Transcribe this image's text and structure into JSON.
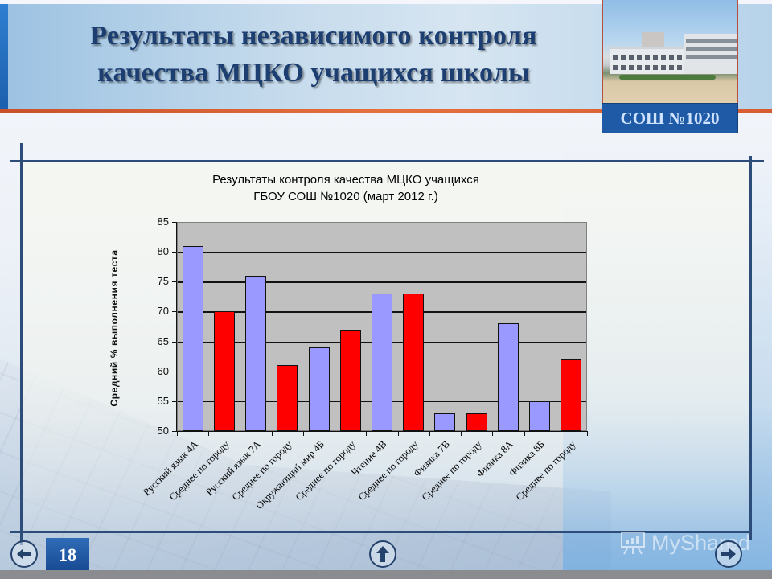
{
  "slide": {
    "title_line1": "Результаты независимого контроля",
    "title_line2": "качества МЦКО учащихся школы",
    "school_label": "СОШ №1020",
    "page_number": "18",
    "watermark": "MyShared",
    "nav": {
      "prev_icon": "arrow-left-icon",
      "up_icon": "arrow-up-icon",
      "next_icon": "arrow-right-icon"
    }
  },
  "colors": {
    "title": "#1c3e70",
    "school_bar": "#9999ff",
    "city_bar": "#ff0000",
    "plot_bg": "#c0c0c0",
    "frame": "#2c4d7a",
    "accent_stripe": "#e6703e",
    "label_bg": "#1f5aa6"
  },
  "chart_data": {
    "type": "bar",
    "title": "Результаты контроля качества МЦКО учащихся",
    "subtitle": "ГБОУ СОШ №1020 (март 2012 г.)",
    "xlabel": "",
    "ylabel": "Средний % выполнения теста",
    "ylim": [
      50,
      85
    ],
    "yticks": [
      50,
      55,
      60,
      65,
      70,
      75,
      80,
      85
    ],
    "grid": true,
    "legend": "none",
    "categories": [
      "Русский язык 4А",
      "Среднее по городу",
      "Русский язык 7А",
      "Среднее по городу",
      "Окружающий мир 4Б",
      "Среднее по городу",
      "Чтение 4В",
      "Среднее по городу",
      "Физика 7В",
      "Среднее по городу",
      "Физика 8А",
      "Физика 8Б",
      "Среднее по городу"
    ],
    "values": [
      81,
      70,
      76,
      61,
      64,
      67,
      73,
      73,
      53,
      53,
      68,
      55,
      62
    ],
    "bar_types": [
      "school",
      "city",
      "school",
      "city",
      "school",
      "city",
      "school",
      "city",
      "school",
      "city",
      "school",
      "school",
      "city"
    ]
  }
}
